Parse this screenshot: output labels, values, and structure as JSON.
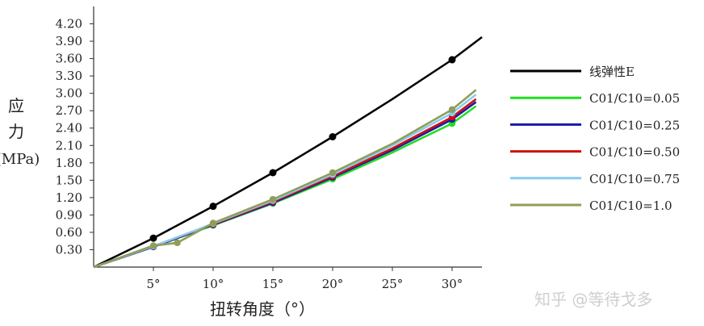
{
  "chart_data": {
    "type": "line",
    "xlabel": "扭转角度（°）",
    "ylabel_lines": [
      "应",
      "力",
      "(MPa)"
    ],
    "xlim": [
      0,
      32.5
    ],
    "ylim": [
      0,
      4.5
    ],
    "x_ticks": [
      5,
      10,
      15,
      20,
      25,
      30
    ],
    "x_tick_labels": [
      "5°",
      "10°",
      "15°",
      "20°",
      "25°",
      "30°"
    ],
    "y_ticks": [
      0.3,
      0.6,
      0.9,
      1.2,
      1.5,
      1.8,
      2.1,
      2.4,
      2.7,
      3.0,
      3.3,
      3.6,
      3.9,
      4.2
    ],
    "y_tick_labels": [
      "0.30",
      "0.60",
      "0.90",
      "1.20",
      "1.50",
      "1.80",
      "2.10",
      "2.40",
      "2.70",
      "3.00",
      "3.30",
      "3.60",
      "3.90",
      "4.20"
    ],
    "legend_position": "right",
    "series": [
      {
        "name": "线弹性E",
        "color": "#000000",
        "x": [
          0,
          5,
          10,
          15,
          20,
          25,
          30,
          32.5
        ],
        "y": [
          0,
          0.5,
          1.05,
          1.63,
          2.25,
          2.9,
          3.58,
          3.97
        ],
        "markers_x": [
          5,
          10,
          15,
          20,
          30
        ],
        "markers_y": [
          0.5,
          1.05,
          1.63,
          2.25,
          3.58
        ]
      },
      {
        "name": "C01/C10=0.05",
        "color": "#22dd22",
        "x": [
          0,
          5,
          10,
          15,
          20,
          25,
          30,
          32
        ],
        "y": [
          0,
          0.35,
          0.72,
          1.1,
          1.52,
          1.98,
          2.48,
          2.78
        ],
        "markers_x": [
          5,
          10,
          15,
          20,
          30
        ],
        "markers_y": [
          0.35,
          0.72,
          1.1,
          1.52,
          2.48
        ]
      },
      {
        "name": "C01/C10=0.25",
        "color": "#1a1aaa",
        "x": [
          0,
          5,
          10,
          15,
          20,
          25,
          30,
          32
        ],
        "y": [
          0,
          0.35,
          0.73,
          1.11,
          1.55,
          2.02,
          2.55,
          2.85
        ],
        "markers_x": [
          5,
          10,
          15,
          20,
          30
        ],
        "markers_y": [
          0.35,
          0.73,
          1.11,
          1.55,
          2.55
        ]
      },
      {
        "name": "C01/C10=0.50",
        "color": "#cc1111",
        "x": [
          0,
          5,
          10,
          15,
          20,
          25,
          30,
          32
        ],
        "y": [
          0,
          0.36,
          0.74,
          1.13,
          1.57,
          2.05,
          2.59,
          2.9
        ],
        "markers_x": [
          5,
          10,
          15,
          20,
          30
        ],
        "markers_y": [
          0.36,
          0.74,
          1.13,
          1.57,
          2.59
        ]
      },
      {
        "name": "C01/C10=0.75",
        "color": "#88ccee",
        "x": [
          0,
          5,
          10,
          15,
          20,
          25,
          30,
          32
        ],
        "y": [
          0,
          0.36,
          0.75,
          1.15,
          1.6,
          2.1,
          2.66,
          2.98
        ],
        "markers_x": [
          5,
          10,
          15,
          20,
          30
        ],
        "markers_y": [
          0.36,
          0.75,
          1.15,
          1.6,
          2.66
        ]
      },
      {
        "name": "C01/C10=1.0",
        "color": "#8f9e5a",
        "x": [
          0,
          5,
          7,
          10,
          15,
          20,
          25,
          30,
          32
        ],
        "y": [
          0,
          0.37,
          0.42,
          0.76,
          1.17,
          1.63,
          2.13,
          2.72,
          3.06
        ],
        "markers_x": [
          5,
          7,
          10,
          15,
          20,
          30
        ],
        "markers_y": [
          0.37,
          0.42,
          0.76,
          1.17,
          1.63,
          2.72
        ]
      }
    ]
  },
  "watermark": "知乎 @等待戈多"
}
